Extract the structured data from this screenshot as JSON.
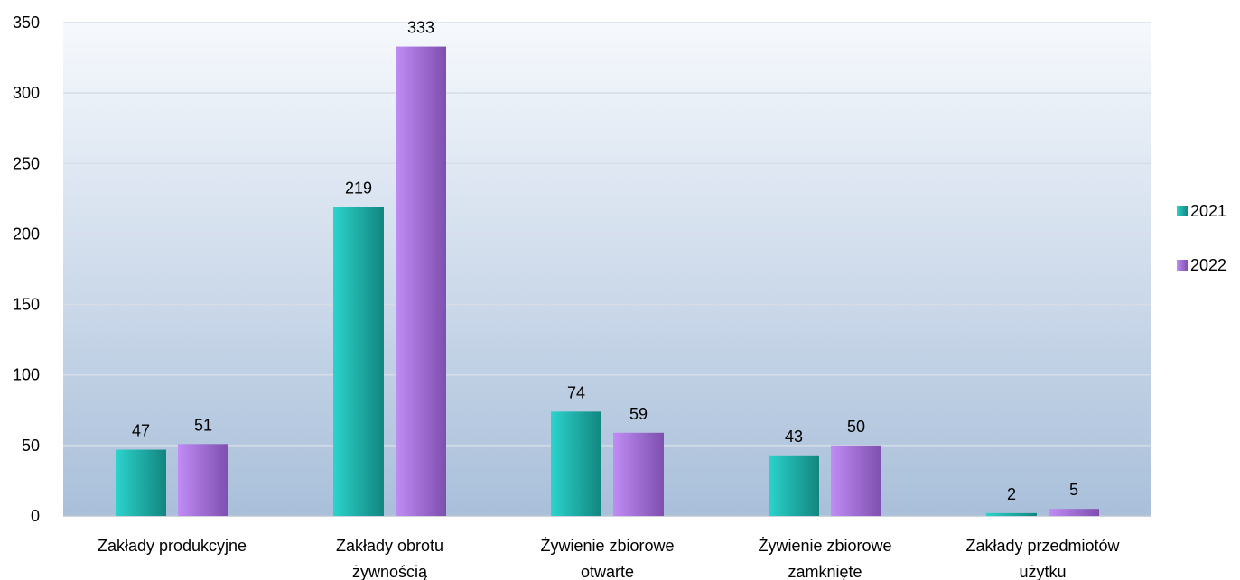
{
  "chart_data": {
    "type": "bar",
    "categories": [
      [
        "Zakłady produkcyjne"
      ],
      [
        "Zakłady obrotu",
        "żywnością"
      ],
      [
        "Żywienie zbiorowe",
        "otwarte"
      ],
      [
        "Żywienie zbiorowe",
        "zamknięte"
      ],
      [
        "Zakłady przedmiotów",
        "użytku"
      ]
    ],
    "series": [
      {
        "name": "2021",
        "values": [
          47,
          219,
          74,
          43,
          2
        ],
        "color": "#1FB9B1"
      },
      {
        "name": "2022",
        "values": [
          51,
          333,
          59,
          50,
          5
        ],
        "color": "#A66FDB"
      }
    ],
    "yticks": [
      "0",
      "50",
      "100",
      "150",
      "200",
      "250",
      "300",
      "350"
    ],
    "ylim": [
      0,
      350
    ],
    "grid": true,
    "legend_position": "right",
    "data_labels": true
  }
}
